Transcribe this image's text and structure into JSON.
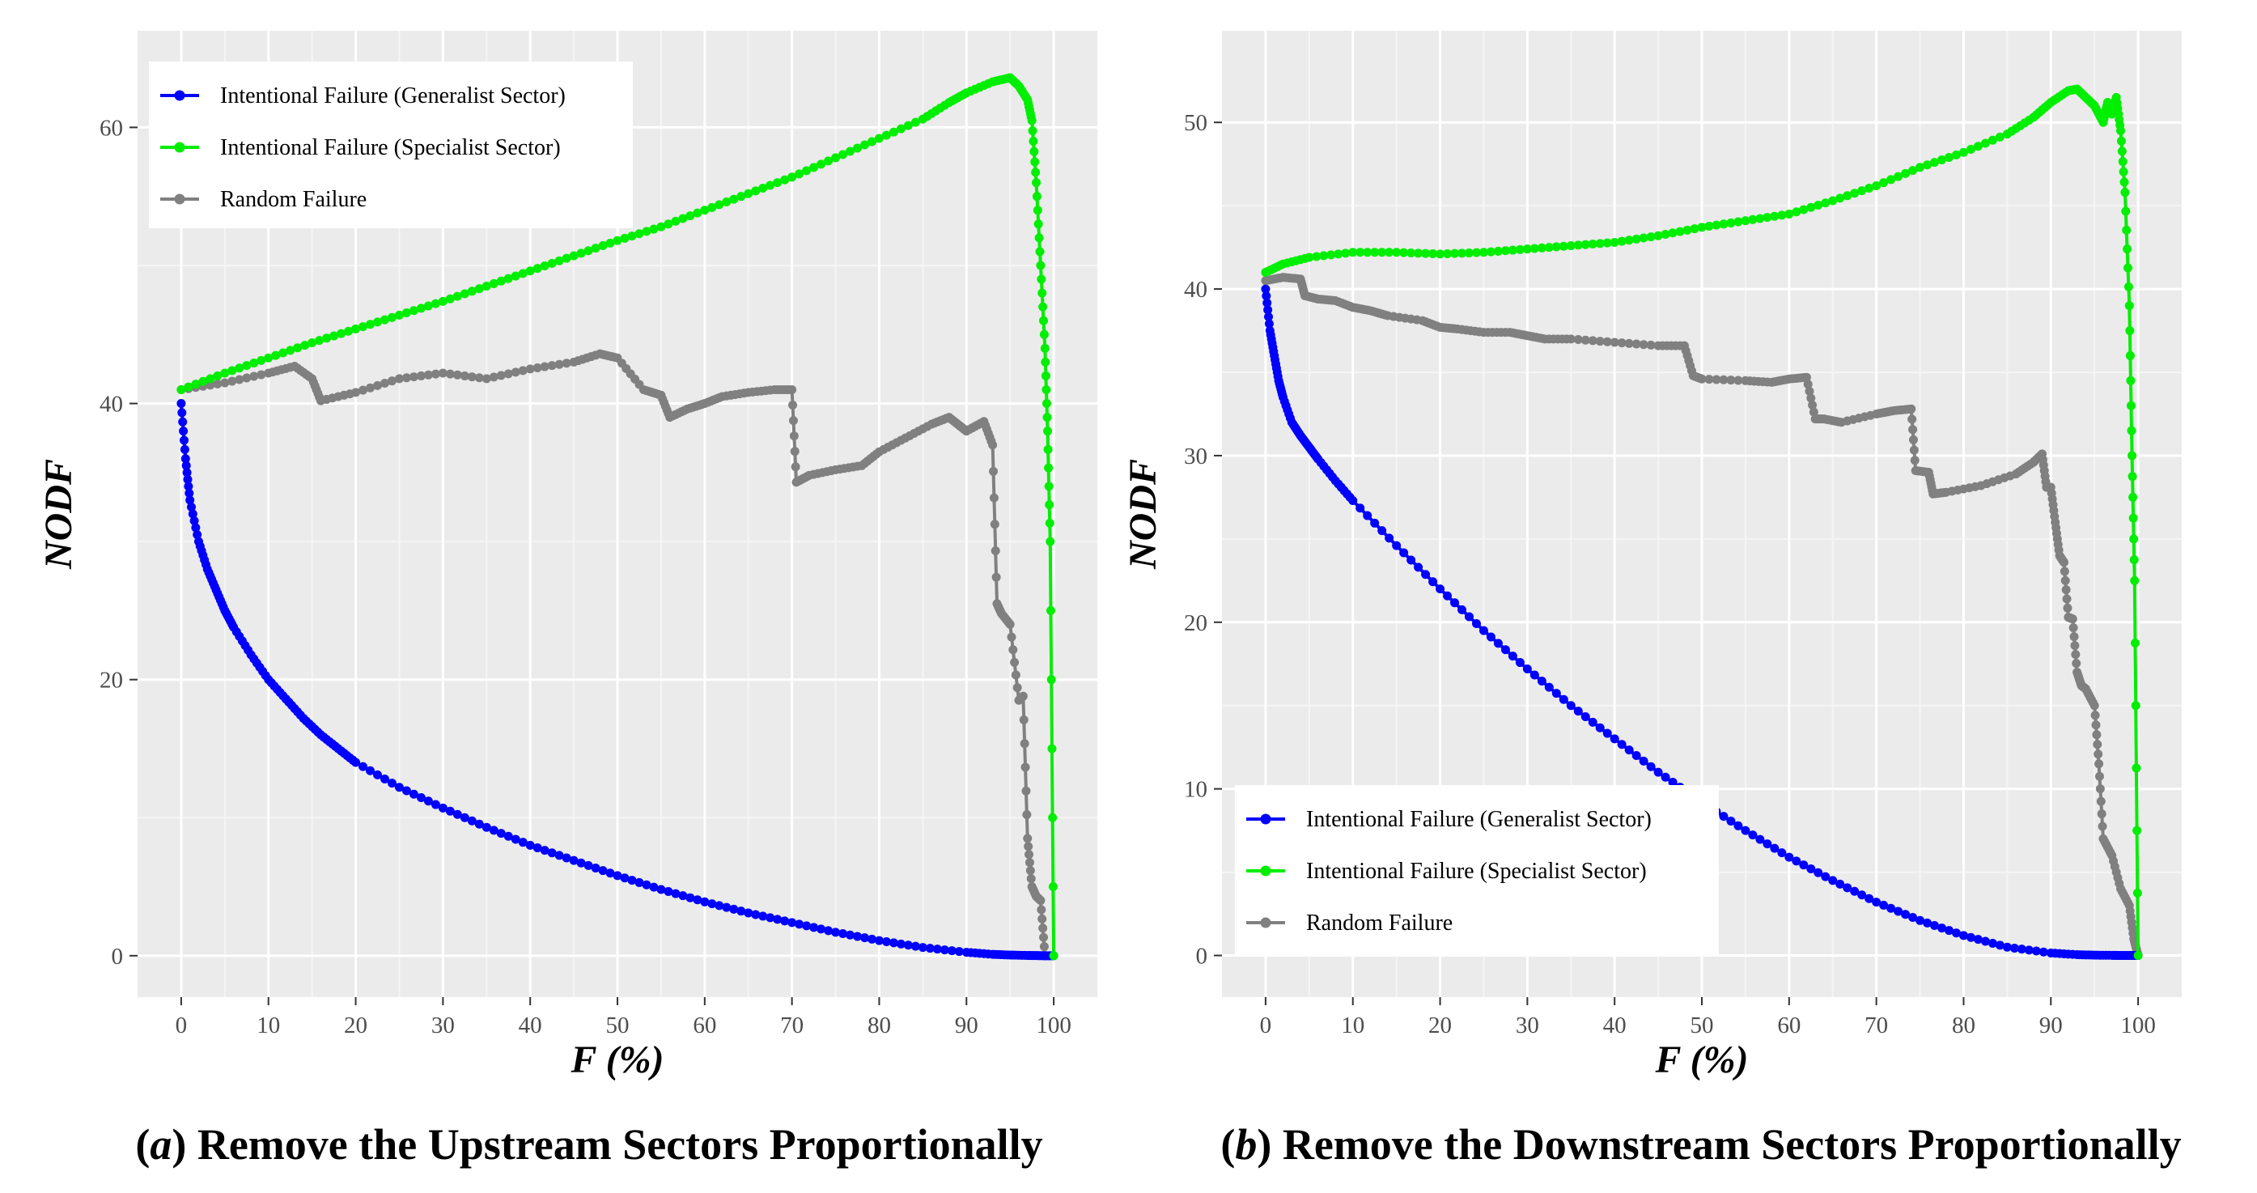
{
  "chart_data": [
    {
      "type": "line",
      "panel_label": "a",
      "title": "Remove the Upstream Sectors Proportionally",
      "xlabel": "F (%)",
      "ylabel": "NODF",
      "xlim": [
        -5,
        105
      ],
      "ylim": [
        -3,
        67
      ],
      "x_ticks": [
        0,
        10,
        20,
        30,
        40,
        50,
        60,
        70,
        80,
        90,
        100
      ],
      "y_ticks": [
        0,
        20,
        40,
        60
      ],
      "grid": true,
      "legend_position": "top-left",
      "series": [
        {
          "name": "Intentional Failure (Generalist Sector)",
          "color": "#0000ff",
          "x": [
            0,
            0.5,
            1,
            2,
            3,
            4,
            5,
            6,
            8,
            10,
            12,
            14,
            16,
            18,
            20,
            25,
            30,
            35,
            40,
            45,
            50,
            55,
            60,
            65,
            70,
            75,
            80,
            85,
            90,
            93,
            95,
            97,
            98,
            99,
            100
          ],
          "y": [
            40,
            36,
            33,
            30,
            28,
            26.5,
            25,
            23.8,
            21.8,
            20,
            18.6,
            17.2,
            16,
            15,
            14,
            12.2,
            10.7,
            9.3,
            8,
            6.9,
            5.8,
            4.8,
            3.9,
            3.1,
            2.4,
            1.7,
            1.1,
            0.6,
            0.25,
            0.1,
            0.05,
            0.02,
            0.01,
            0,
            0
          ]
        },
        {
          "name": "Intentional Failure (Specialist Sector)",
          "color": "#00ee00",
          "x": [
            0,
            5,
            10,
            15,
            20,
            25,
            30,
            35,
            40,
            45,
            50,
            55,
            60,
            65,
            70,
            75,
            80,
            85,
            88,
            90,
            93,
            95,
            96,
            97,
            97.5,
            98,
            98.5,
            99,
            99.3,
            99.6,
            100
          ],
          "y": [
            41,
            42.2,
            43.3,
            44.4,
            45.4,
            46.4,
            47.4,
            48.5,
            49.6,
            50.7,
            51.8,
            52.8,
            54,
            55.2,
            56.4,
            57.8,
            59.2,
            60.6,
            61.8,
            62.5,
            63.3,
            63.6,
            63,
            62,
            60.5,
            56,
            50,
            44,
            38,
            30,
            0
          ]
        },
        {
          "name": "Random Failure",
          "color": "#808080",
          "x": [
            0,
            5,
            10,
            13,
            15,
            16,
            20,
            25,
            30,
            35,
            40,
            45,
            48,
            50,
            53,
            55,
            56,
            58,
            60,
            62,
            65,
            68,
            70,
            70.5,
            72,
            75,
            78,
            80,
            83,
            86,
            88,
            89,
            90,
            92,
            93,
            93.5,
            94,
            95,
            96,
            96.5,
            97,
            97.5,
            98,
            98.5,
            99
          ],
          "y": [
            41,
            41.5,
            42.2,
            42.7,
            41.8,
            40.2,
            40.8,
            41.8,
            42.2,
            41.8,
            42.5,
            43,
            43.6,
            43.3,
            41,
            40.6,
            39,
            39.6,
            40,
            40.5,
            40.8,
            41,
            41,
            34.3,
            34.8,
            35.2,
            35.5,
            36.5,
            37.5,
            38.5,
            39,
            38.5,
            38,
            38.7,
            37,
            25.5,
            24.8,
            24,
            18.5,
            18.8,
            8.5,
            5,
            4.3,
            4,
            0
          ]
        }
      ]
    },
    {
      "type": "line",
      "panel_label": "b",
      "title": "Remove the Downstream Sectors Proportionally",
      "xlabel": "F (%)",
      "ylabel": "NODF",
      "xlim": [
        -5,
        105
      ],
      "ylim": [
        -2.5,
        55.5
      ],
      "x_ticks": [
        0,
        10,
        20,
        30,
        40,
        50,
        60,
        70,
        80,
        90,
        100
      ],
      "y_ticks": [
        0,
        10,
        20,
        30,
        40,
        50
      ],
      "grid": true,
      "legend_position": "bottom-left",
      "series": [
        {
          "name": "Intentional Failure (Generalist Sector)",
          "color": "#0000ff",
          "x": [
            0,
            0.5,
            1,
            1.5,
            2,
            3,
            4,
            5,
            6,
            8,
            10,
            15,
            20,
            25,
            30,
            35,
            40,
            45,
            50,
            55,
            60,
            65,
            70,
            75,
            80,
            85,
            90,
            93,
            95,
            97,
            98,
            99,
            100
          ],
          "y": [
            40,
            37.5,
            36,
            34.5,
            33.5,
            32,
            31.2,
            30.5,
            29.8,
            28.5,
            27.3,
            24.6,
            22,
            19.5,
            17.2,
            15,
            13,
            11,
            9.2,
            7.5,
            5.9,
            4.5,
            3.2,
            2.1,
            1.2,
            0.5,
            0.15,
            0.05,
            0.02,
            0.01,
            0,
            0,
            0
          ]
        },
        {
          "name": "Intentional Failure (Specialist Sector)",
          "color": "#00ee00",
          "x": [
            0,
            2,
            5,
            10,
            15,
            20,
            25,
            30,
            35,
            40,
            45,
            50,
            55,
            60,
            65,
            70,
            75,
            80,
            85,
            88,
            90,
            92,
            93,
            94,
            95,
            96,
            96.5,
            97,
            97.5,
            98,
            98.5,
            99,
            99.3,
            99.6,
            100
          ],
          "y": [
            41,
            41.5,
            41.9,
            42.2,
            42.2,
            42.1,
            42.2,
            42.4,
            42.6,
            42.8,
            43.2,
            43.7,
            44.1,
            44.5,
            45.3,
            46.2,
            47.3,
            48.2,
            49.3,
            50.3,
            51.2,
            51.9,
            52,
            51.5,
            51,
            50,
            51.2,
            50.5,
            51.5,
            49.5,
            45.8,
            39,
            30,
            22.5,
            0
          ]
        },
        {
          "name": "Random Failure",
          "color": "#808080",
          "x": [
            0,
            2,
            4,
            4.5,
            6,
            8,
            10,
            12,
            14,
            18,
            20,
            22,
            25,
            28,
            30,
            32,
            35,
            40,
            45,
            48,
            49,
            50,
            55,
            58,
            60,
            62,
            63,
            64,
            66,
            70,
            72,
            74,
            74.5,
            76,
            76.5,
            78,
            82,
            86,
            88,
            89,
            89.5,
            90,
            90.5,
            91,
            91.5,
            92,
            92.5,
            93,
            93.5,
            94,
            95,
            95.5,
            96,
            97,
            98,
            99,
            99.5,
            100
          ],
          "y": [
            40.5,
            40.7,
            40.6,
            39.6,
            39.4,
            39.3,
            38.9,
            38.7,
            38.4,
            38.1,
            37.7,
            37.6,
            37.4,
            37.4,
            37.2,
            37,
            37,
            36.8,
            36.6,
            36.6,
            34.8,
            34.6,
            34.5,
            34.4,
            34.6,
            34.7,
            32.2,
            32.2,
            32,
            32.5,
            32.7,
            32.8,
            29.1,
            29,
            27.7,
            27.8,
            28.2,
            28.9,
            29.6,
            30.1,
            28.1,
            28.1,
            26,
            24,
            23.6,
            20.3,
            20.2,
            17,
            16.2,
            16,
            15,
            11.5,
            7,
            6,
            4,
            3,
            1,
            0
          ]
        }
      ]
    }
  ]
}
